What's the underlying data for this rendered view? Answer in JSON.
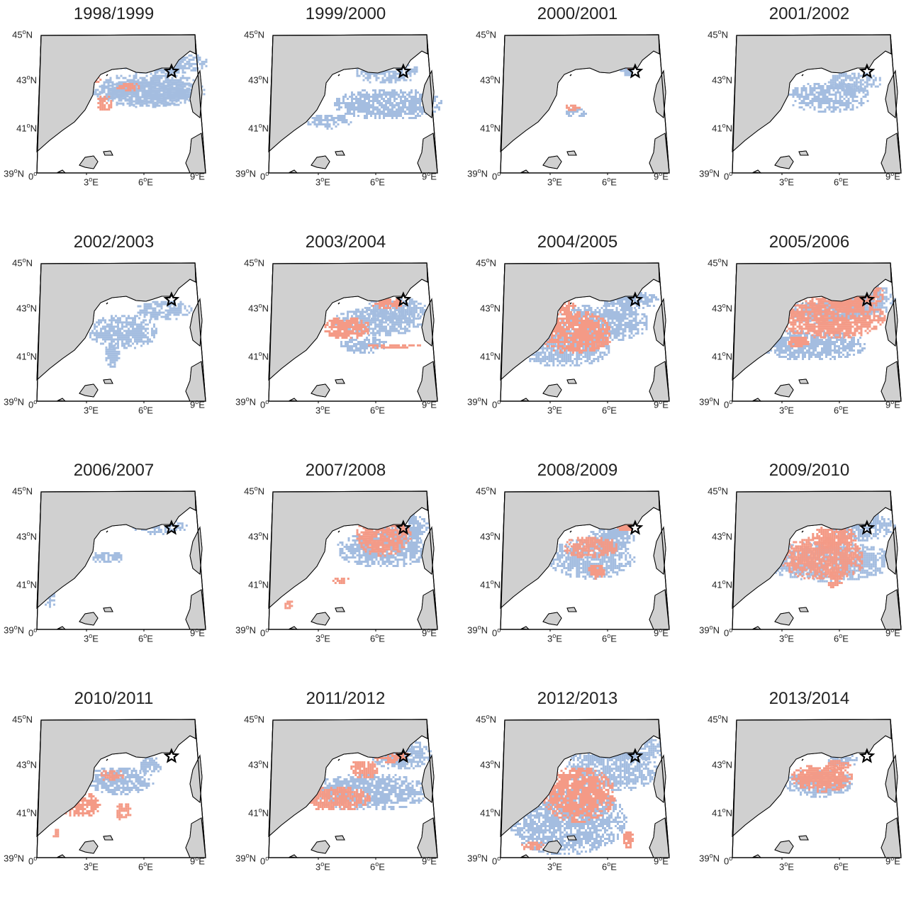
{
  "panels": [
    {
      "title": "1998/1999",
      "blue": [
        [
          0.34,
          0.22,
          0.66,
          0.28
        ],
        [
          0.3,
          0.28,
          0.72,
          0.22
        ],
        [
          0.42,
          0.06,
          0.62,
          0.18
        ]
      ],
      "red": [
        [
          0.25,
          0.2,
          0.12,
          0.11
        ],
        [
          0.33,
          0.4,
          0.1,
          0.15
        ],
        [
          0.45,
          0.3,
          0.15,
          0.08
        ],
        [
          0.55,
          0.15,
          0.1,
          0.08
        ]
      ]
    },
    {
      "title": "1999/2000",
      "blue": [
        [
          0.36,
          0.35,
          0.7,
          0.25
        ],
        [
          0.18,
          0.55,
          0.3,
          0.12
        ],
        [
          0.5,
          0.12,
          0.4,
          0.2
        ]
      ],
      "red": [
        [
          0.1,
          0.62,
          0.03,
          0.03
        ]
      ]
    },
    {
      "title": "2000/2001",
      "blue": [
        [
          0.36,
          0.5,
          0.14,
          0.08
        ],
        [
          0.7,
          0.18,
          0.1,
          0.08
        ]
      ],
      "red": [
        [
          0.36,
          0.47,
          0.1,
          0.06
        ],
        [
          0.72,
          0.15,
          0.08,
          0.06
        ],
        [
          0.32,
          0.2,
          0.05,
          0.06
        ]
      ]
    },
    {
      "title": "2001/2002",
      "blue": [
        [
          0.3,
          0.3,
          0.52,
          0.24
        ],
        [
          0.55,
          0.22,
          0.35,
          0.16
        ]
      ],
      "red": []
    },
    {
      "title": "2002/2003",
      "blue": [
        [
          0.28,
          0.33,
          0.44,
          0.28
        ],
        [
          0.58,
          0.22,
          0.35,
          0.16
        ],
        [
          0.38,
          0.56,
          0.1,
          0.2
        ]
      ],
      "red": []
    },
    {
      "title": "2003/2004",
      "blue": [
        [
          0.36,
          0.28,
          0.58,
          0.22
        ],
        [
          0.55,
          0.2,
          0.4,
          0.2
        ],
        [
          0.4,
          0.5,
          0.3,
          0.14
        ]
      ],
      "red": [
        [
          0.3,
          0.35,
          0.3,
          0.18
        ],
        [
          0.6,
          0.2,
          0.2,
          0.1
        ],
        [
          0.56,
          0.56,
          0.35,
          0.04
        ]
      ]
    },
    {
      "title": "2004/2005",
      "blue": [
        [
          0.05,
          0.45,
          0.6,
          0.3
        ],
        [
          0.3,
          0.25,
          0.6,
          0.3
        ],
        [
          0.6,
          0.15,
          0.35,
          0.15
        ]
      ],
      "red": [
        [
          0.2,
          0.3,
          0.45,
          0.35
        ],
        [
          0.28,
          0.2,
          0.15,
          0.12
        ],
        [
          0.55,
          0.5,
          0.1,
          0.1
        ]
      ]
    },
    {
      "title": "2005/2006",
      "blue": [
        [
          0.12,
          0.45,
          0.68,
          0.25
        ],
        [
          0.55,
          0.08,
          0.43,
          0.3
        ],
        [
          0.3,
          0.22,
          0.5,
          0.2
        ]
      ],
      "red": [
        [
          0.22,
          0.18,
          0.7,
          0.35
        ],
        [
          0.5,
          0.08,
          0.42,
          0.2
        ],
        [
          0.3,
          0.5,
          0.15,
          0.1
        ]
      ]
    },
    {
      "title": "2006/2007",
      "blue": [
        [
          0.55,
          0.15,
          0.35,
          0.12
        ],
        [
          0.3,
          0.4,
          0.2,
          0.1
        ],
        [
          0.0,
          0.72,
          0.08,
          0.12
        ]
      ],
      "red": []
    },
    {
      "title": "2007/2008",
      "blue": [
        [
          0.38,
          0.25,
          0.6,
          0.28
        ],
        [
          0.6,
          0.1,
          0.38,
          0.25
        ]
      ],
      "red": [
        [
          0.5,
          0.12,
          0.35,
          0.32
        ],
        [
          0.05,
          0.78,
          0.06,
          0.08
        ],
        [
          0.35,
          0.6,
          0.12,
          0.06
        ]
      ]
    },
    {
      "title": "2008/2009",
      "blue": [
        [
          0.25,
          0.3,
          0.55,
          0.32
        ],
        [
          0.5,
          0.2,
          0.3,
          0.2
        ]
      ],
      "red": [
        [
          0.35,
          0.28,
          0.35,
          0.18
        ],
        [
          0.5,
          0.5,
          0.12,
          0.12
        ],
        [
          0.68,
          0.15,
          0.12,
          0.1
        ]
      ]
    },
    {
      "title": "2009/2010",
      "blue": [
        [
          0.15,
          0.32,
          0.83,
          0.32
        ],
        [
          0.55,
          0.1,
          0.43,
          0.22
        ]
      ],
      "red": [
        [
          0.25,
          0.28,
          0.55,
          0.35
        ],
        [
          0.45,
          0.2,
          0.3,
          0.18
        ],
        [
          0.55,
          0.55,
          0.1,
          0.15
        ]
      ]
    },
    {
      "title": "2010/2011",
      "blue": [
        [
          0.26,
          0.3,
          0.44,
          0.22
        ],
        [
          0.6,
          0.22,
          0.14,
          0.15
        ]
      ],
      "red": [
        [
          0.1,
          0.5,
          0.26,
          0.2
        ],
        [
          0.35,
          0.32,
          0.16,
          0.1
        ],
        [
          0.45,
          0.58,
          0.1,
          0.15
        ],
        [
          0.05,
          0.78,
          0.05,
          0.08
        ]
      ]
    },
    {
      "title": "2011/2012",
      "blue": [
        [
          0.18,
          0.35,
          0.8,
          0.3
        ],
        [
          0.6,
          0.08,
          0.38,
          0.25
        ]
      ],
      "red": [
        [
          0.15,
          0.45,
          0.45,
          0.2
        ],
        [
          0.45,
          0.25,
          0.2,
          0.15
        ],
        [
          0.6,
          0.15,
          0.25,
          0.12
        ]
      ]
    },
    {
      "title": "2012/2013",
      "blue": [
        [
          0.0,
          0.45,
          0.75,
          0.55
        ],
        [
          0.35,
          0.15,
          0.6,
          0.35
        ],
        [
          0.65,
          0.06,
          0.33,
          0.2
        ]
      ],
      "red": [
        [
          0.22,
          0.3,
          0.46,
          0.44
        ],
        [
          0.08,
          0.88,
          0.15,
          0.08
        ],
        [
          0.72,
          0.8,
          0.08,
          0.14
        ]
      ]
    },
    {
      "title": "2013/2014",
      "blue": [
        [
          0.28,
          0.32,
          0.44,
          0.22
        ],
        [
          0.55,
          0.2,
          0.2,
          0.1
        ]
      ],
      "red": [
        [
          0.32,
          0.28,
          0.4,
          0.22
        ],
        [
          0.55,
          0.24,
          0.15,
          0.1
        ]
      ]
    }
  ],
  "axes": {
    "lat_ticks": [
      "45",
      "43",
      "41",
      "39"
    ],
    "lat_suffix": "N",
    "lon_ticks": [
      "0",
      "3",
      "6",
      "9"
    ],
    "lon_suffix": "E",
    "degree": "o"
  },
  "colors": {
    "land": "#d0d0d0",
    "sea": "#ffffff",
    "blue_anomaly": "#a4bde0",
    "red_anomaly": "#f49a86",
    "coast": "#000000"
  },
  "marker": {
    "icon": "star-icon",
    "lon": 7.5,
    "lat": 43.4
  }
}
